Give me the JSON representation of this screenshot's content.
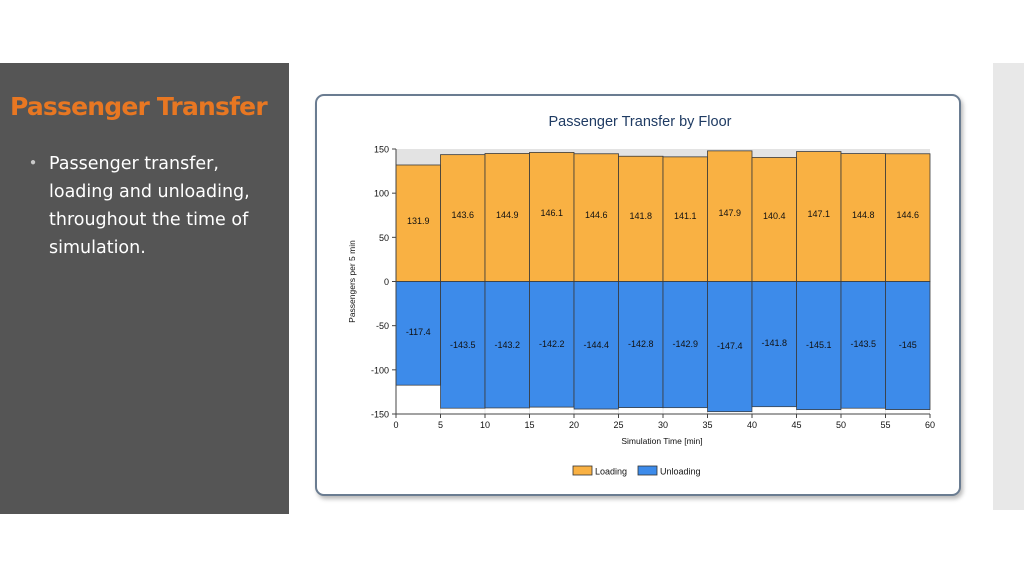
{
  "slide": {
    "title": "Passenger Transfer",
    "bullet": "Passenger transfer, loading and unloading, throughout the time of simulation."
  },
  "colors": {
    "panel_bg": "#555555",
    "title": "#e87722",
    "loading": "#f9b143",
    "unloading": "#3d8bea",
    "chart_title": "#1f3b63"
  },
  "chart_data": {
    "type": "bar",
    "title": "Passenger Transfer by Floor",
    "xlabel": "Simulation Time [min]",
    "ylabel": "Passengers per 5 min",
    "x_ticks": [
      "0",
      "5",
      "10",
      "15",
      "20",
      "25",
      "30",
      "35",
      "40",
      "45",
      "50",
      "55",
      "60"
    ],
    "y_ticks": [
      "150",
      "100",
      "50",
      "0",
      "-50",
      "-100",
      "-150"
    ],
    "xlim": [
      0,
      60
    ],
    "ylim": [
      -150,
      150
    ],
    "bin_width": 5,
    "categories": [
      "0-5",
      "5-10",
      "10-15",
      "15-20",
      "20-25",
      "25-30",
      "30-35",
      "35-40",
      "40-45",
      "45-50",
      "50-55",
      "55-60"
    ],
    "series": [
      {
        "name": "Loading",
        "values": [
          131.9,
          143.6,
          144.9,
          146.1,
          144.6,
          141.8,
          141.1,
          147.9,
          140.4,
          147.1,
          144.8,
          144.6
        ],
        "labels": [
          "131.9",
          "143.6",
          "144.9",
          "146.1",
          "144.6",
          "141.8",
          "141.1",
          "147.9",
          "140.4",
          "147.1",
          "144.8",
          "144.6"
        ]
      },
      {
        "name": "Unloading",
        "values": [
          -117.4,
          -143.5,
          -143.2,
          -142.2,
          -144.4,
          -142.8,
          -142.9,
          -147.4,
          -141.8,
          -145.1,
          -143.5,
          -145
        ],
        "labels": [
          "-117.4",
          "-143.5",
          "-143.2",
          "-142.2",
          "-144.4",
          "-142.8",
          "-142.9",
          "-147.4",
          "-141.8",
          "-145.1",
          "-143.5",
          "-145"
        ]
      }
    ],
    "legend_position": "bottom-center",
    "grid": false
  }
}
